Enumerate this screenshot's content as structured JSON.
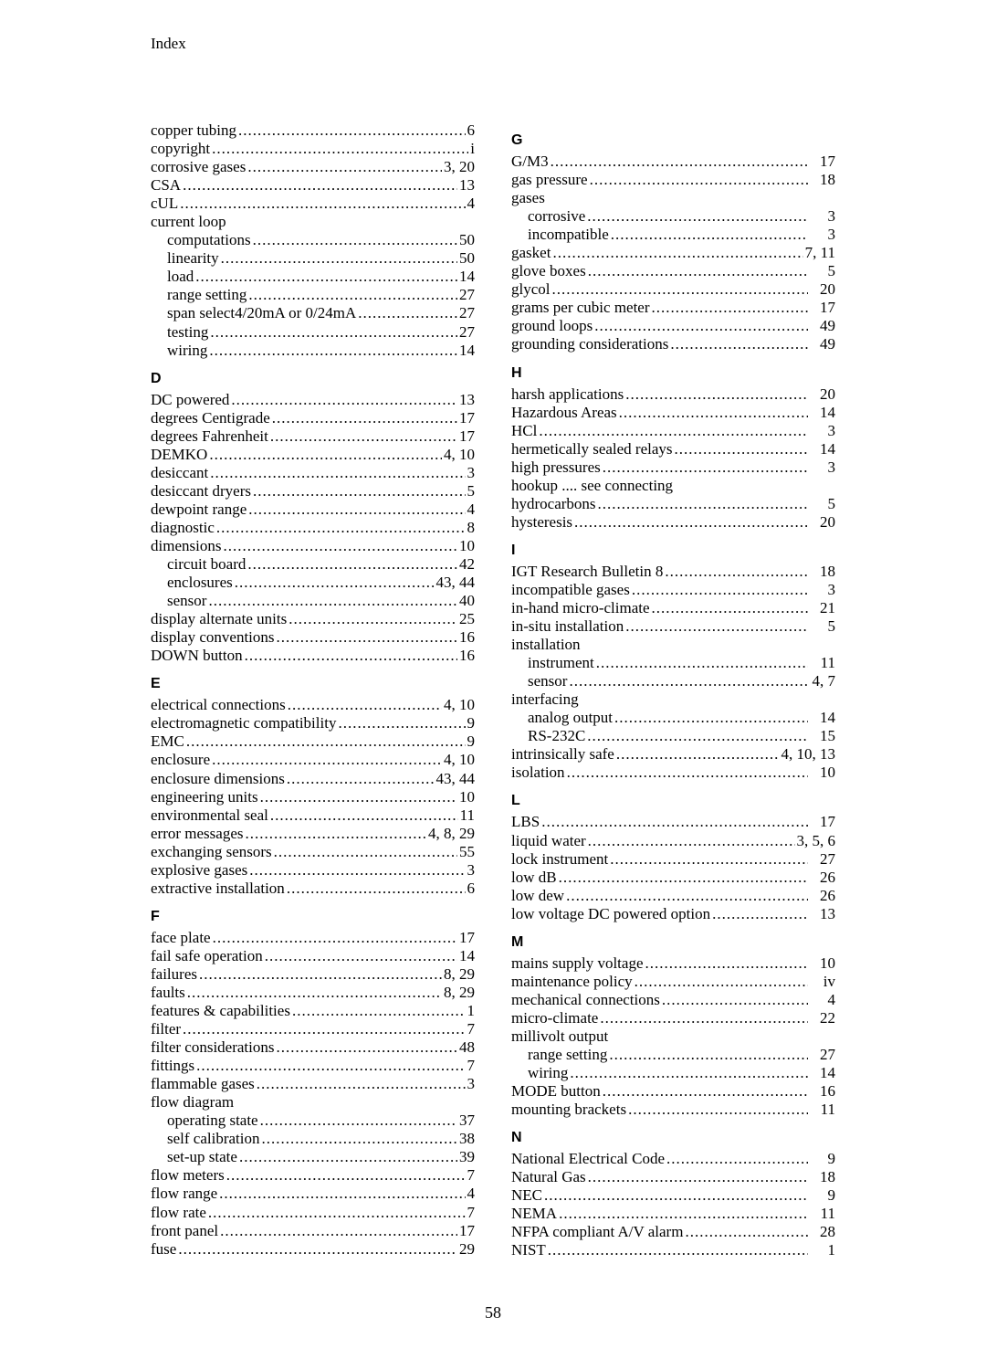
{
  "header": "Index",
  "page_number": "58",
  "dot_fill": "..............................................................",
  "columns": [
    {
      "class": "c1",
      "sections": [
        {
          "letter": null,
          "entries": [
            {
              "level": 0,
              "term": "copper tubing",
              "pg": "6"
            },
            {
              "level": 0,
              "term": "copyright",
              "pg": "i"
            },
            {
              "level": 0,
              "term": "corrosive gases",
              "pg": "3, 20"
            },
            {
              "level": 0,
              "term": "CSA",
              "pg": "13"
            },
            {
              "level": 0,
              "term": "cUL",
              "pg": "4"
            },
            {
              "level": 0,
              "term": "current loop",
              "pg": "",
              "noleader": true
            },
            {
              "level": 1,
              "term": "computations",
              "pg": "50"
            },
            {
              "level": 1,
              "term": "linearity",
              "pg": "50"
            },
            {
              "level": 1,
              "term": "load",
              "pg": "14"
            },
            {
              "level": 1,
              "term": "range setting",
              "pg": "27"
            },
            {
              "level": 1,
              "term": "span select4/20mA or 0/24mA",
              "pg": "27"
            },
            {
              "level": 1,
              "term": "testing",
              "pg": "27"
            },
            {
              "level": 1,
              "term": "wiring",
              "pg": "14"
            }
          ]
        },
        {
          "letter": "D",
          "entries": [
            {
              "level": 0,
              "term": "DC powered",
              "pg": "13"
            },
            {
              "level": 0,
              "term": "degrees Centigrade",
              "pg": "17"
            },
            {
              "level": 0,
              "term": "degrees Fahrenheit",
              "pg": "17"
            },
            {
              "level": 0,
              "term": "DEMKO",
              "pg": "4, 10"
            },
            {
              "level": 0,
              "term": "desiccant",
              "pg": "3"
            },
            {
              "level": 0,
              "term": "desiccant dryers",
              "pg": "5"
            },
            {
              "level": 0,
              "term": "dewpoint range",
              "pg": "4"
            },
            {
              "level": 0,
              "term": "diagnostic",
              "pg": "8"
            },
            {
              "level": 0,
              "term": "dimensions",
              "pg": "10"
            },
            {
              "level": 1,
              "term": "circuit board",
              "pg": "42"
            },
            {
              "level": 1,
              "term": "enclosures",
              "pg": "43, 44"
            },
            {
              "level": 1,
              "term": "sensor",
              "pg": "40"
            },
            {
              "level": 0,
              "term": "display alternate units",
              "pg": "25"
            },
            {
              "level": 0,
              "term": "display conventions",
              "pg": "16"
            },
            {
              "level": 0,
              "term": "DOWN button",
              "pg": "16"
            }
          ]
        },
        {
          "letter": "E",
          "entries": [
            {
              "level": 0,
              "term": "electrical connections",
              "pg": "4, 10"
            },
            {
              "level": 0,
              "term": "electromagnetic compatibility",
              "pg": "9"
            },
            {
              "level": 0,
              "term": "EMC",
              "pg": "9"
            },
            {
              "level": 0,
              "term": "enclosure",
              "pg": "4, 10"
            },
            {
              "level": 0,
              "term": "enclosure dimensions",
              "pg": "43, 44"
            },
            {
              "level": 0,
              "term": "engineering units",
              "pg": "10"
            },
            {
              "level": 0,
              "term": "environmental seal",
              "pg": "11"
            },
            {
              "level": 0,
              "term": "error messages",
              "pg": "4, 8, 29"
            },
            {
              "level": 0,
              "term": "exchanging sensors",
              "pg": "55"
            },
            {
              "level": 0,
              "term": "explosive gases",
              "pg": "3"
            },
            {
              "level": 0,
              "term": "extractive installation",
              "pg": "6"
            }
          ]
        },
        {
          "letter": "F",
          "entries": [
            {
              "level": 0,
              "term": "face plate",
              "pg": "17"
            },
            {
              "level": 0,
              "term": "fail safe operation",
              "pg": "14"
            },
            {
              "level": 0,
              "term": "failures",
              "pg": "8, 29"
            },
            {
              "level": 0,
              "term": "faults",
              "pg": "8, 29"
            },
            {
              "level": 0,
              "term": "features & capabilities",
              "pg": "1"
            },
            {
              "level": 0,
              "term": "filter",
              "pg": "7"
            },
            {
              "level": 0,
              "term": "filter considerations",
              "pg": "48"
            },
            {
              "level": 0,
              "term": "fittings",
              "pg": "7"
            },
            {
              "level": 0,
              "term": "flammable gases",
              "pg": "3"
            },
            {
              "level": 0,
              "term": "flow diagram",
              "pg": "",
              "noleader": true
            },
            {
              "level": 1,
              "term": "operating state",
              "pg": "37"
            },
            {
              "level": 1,
              "term": "self calibration",
              "pg": "38"
            },
            {
              "level": 1,
              "term": "set-up state",
              "pg": "39"
            },
            {
              "level": 0,
              "term": "flow meters",
              "pg": "7"
            },
            {
              "level": 0,
              "term": "flow range",
              "pg": "4"
            },
            {
              "level": 0,
              "term": "flow rate",
              "pg": "7"
            },
            {
              "level": 0,
              "term": "front panel",
              "pg": "17"
            },
            {
              "level": 0,
              "term": "fuse",
              "pg": "29"
            }
          ]
        }
      ]
    },
    {
      "class": "c2",
      "sections": [
        {
          "letter": "G",
          "entries": [
            {
              "level": 0,
              "term": "G/M3",
              "pg": "17"
            },
            {
              "level": 0,
              "term": "gas pressure",
              "pg": "18"
            },
            {
              "level": 0,
              "term": "gases",
              "pg": "",
              "noleader": true
            },
            {
              "level": 1,
              "term": "corrosive",
              "pg": "3"
            },
            {
              "level": 1,
              "term": "incompatible",
              "pg": "3"
            },
            {
              "level": 0,
              "term": "gasket",
              "pg": "7, 11"
            },
            {
              "level": 0,
              "term": "glove boxes",
              "pg": "5"
            },
            {
              "level": 0,
              "term": "glycol",
              "pg": "20"
            },
            {
              "level": 0,
              "term": "grams per cubic meter",
              "pg": "17"
            },
            {
              "level": 0,
              "term": "ground loops",
              "pg": "49"
            },
            {
              "level": 0,
              "term": "grounding considerations",
              "pg": "49"
            }
          ]
        },
        {
          "letter": "H",
          "entries": [
            {
              "level": 0,
              "term": "harsh applications",
              "pg": "20"
            },
            {
              "level": 0,
              "term": "Hazardous Areas",
              "pg": "14"
            },
            {
              "level": 0,
              "term": "HCl",
              "pg": "3"
            },
            {
              "level": 0,
              "term": "hermetically sealed relays",
              "pg": "14"
            },
            {
              "level": 0,
              "term": "high pressures",
              "pg": "3"
            },
            {
              "level": 0,
              "term": "hookup .... see connecting",
              "pg": "",
              "noleader": true
            },
            {
              "level": 0,
              "term": "hydrocarbons",
              "pg": "5"
            },
            {
              "level": 0,
              "term": "hysteresis",
              "pg": "20"
            }
          ]
        },
        {
          "letter": "I",
          "entries": [
            {
              "level": 0,
              "term": "IGT Research Bulletin 8",
              "pg": "18"
            },
            {
              "level": 0,
              "term": "incompatible gases",
              "pg": "3"
            },
            {
              "level": 0,
              "term": "in-hand micro-climate",
              "pg": "21"
            },
            {
              "level": 0,
              "term": "in-situ installation",
              "pg": "5"
            },
            {
              "level": 0,
              "term": "installation",
              "pg": "",
              "noleader": true
            },
            {
              "level": 1,
              "term": "instrument",
              "pg": "11"
            },
            {
              "level": 1,
              "term": "sensor",
              "pg": "4, 7"
            },
            {
              "level": 0,
              "term": "interfacing",
              "pg": "",
              "noleader": true
            },
            {
              "level": 1,
              "term": "analog output",
              "pg": "14"
            },
            {
              "level": 1,
              "term": "RS-232C",
              "pg": "15"
            },
            {
              "level": 0,
              "term": "intrinsically safe",
              "pg": "4, 10, 13"
            },
            {
              "level": 0,
              "term": "isolation",
              "pg": "10"
            }
          ]
        },
        {
          "letter": "L",
          "entries": [
            {
              "level": 0,
              "term": "LBS",
              "pg": "17"
            },
            {
              "level": 0,
              "term": "liquid water",
              "pg": "3, 5, 6"
            },
            {
              "level": 0,
              "term": "lock instrument",
              "pg": "27"
            },
            {
              "level": 0,
              "term": "low dB",
              "pg": "26"
            },
            {
              "level": 0,
              "term": "low dew",
              "pg": "26"
            },
            {
              "level": 0,
              "term": "low voltage DC powered option",
              "pg": "13"
            }
          ]
        },
        {
          "letter": "M",
          "entries": [
            {
              "level": 0,
              "term": "mains supply voltage",
              "pg": "10"
            },
            {
              "level": 0,
              "term": "maintenance policy",
              "pg": "iv"
            },
            {
              "level": 0,
              "term": "mechanical connections",
              "pg": "4"
            },
            {
              "level": 0,
              "term": "micro-climate",
              "pg": "22"
            },
            {
              "level": 0,
              "term": "millivolt output",
              "pg": "",
              "noleader": true
            },
            {
              "level": 1,
              "term": "range setting",
              "pg": "27"
            },
            {
              "level": 1,
              "term": "wiring",
              "pg": "14"
            },
            {
              "level": 0,
              "term": "MODE button",
              "pg": "16"
            },
            {
              "level": 0,
              "term": "mounting brackets",
              "pg": "11"
            }
          ]
        },
        {
          "letter": "N",
          "entries": [
            {
              "level": 0,
              "term": "National Electrical Code",
              "pg": "9"
            },
            {
              "level": 0,
              "term": "Natural Gas",
              "pg": "18"
            },
            {
              "level": 0,
              "term": "NEC",
              "pg": "9"
            },
            {
              "level": 0,
              "term": "NEMA",
              "pg": "11"
            },
            {
              "level": 0,
              "term": "NFPA compliant A/V alarm",
              "pg": "28"
            },
            {
              "level": 0,
              "term": "NIST",
              "pg": "1"
            }
          ]
        }
      ]
    }
  ]
}
